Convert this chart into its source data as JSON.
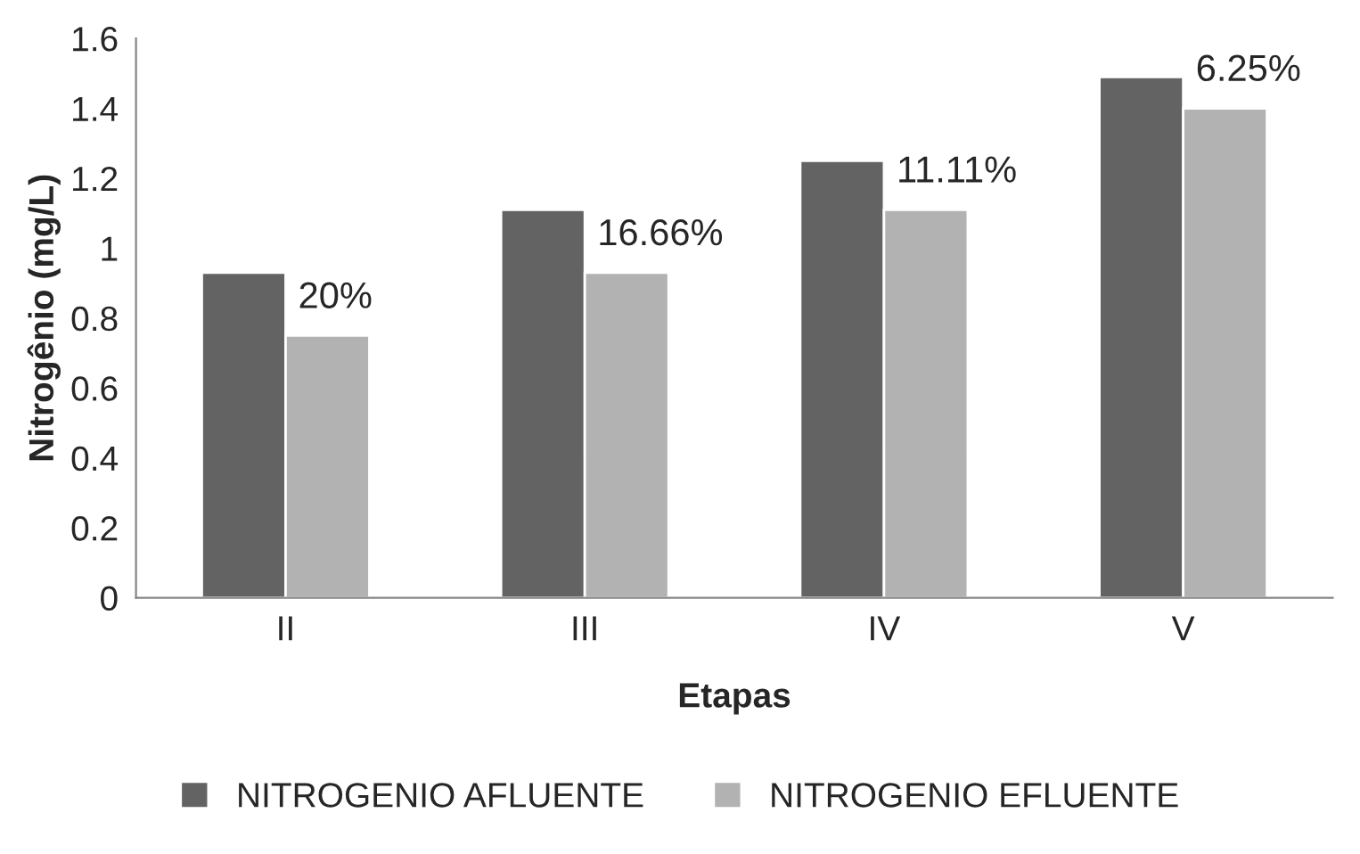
{
  "chart_data": {
    "type": "bar",
    "xlabel": "Etapas",
    "ylabel": "Nitrogênio (mg/L)",
    "categories": [
      "II",
      "III",
      "IV",
      "V"
    ],
    "series": [
      {
        "name": "NITROGENIO AFLUENTE",
        "color": "#636363",
        "values": [
          0.93,
          1.11,
          1.25,
          1.49
        ]
      },
      {
        "name": "NITROGENIO EFLUENTE",
        "color": "#b2b2b2",
        "values": [
          0.75,
          0.93,
          1.11,
          1.4
        ]
      }
    ],
    "annotations": [
      {
        "text": "20%",
        "x": "II",
        "y": 0.75
      },
      {
        "text": "16.66%",
        "x": "III",
        "y": 0.93
      },
      {
        "text": "11.11%",
        "x": "IV",
        "y": 1.11
      },
      {
        "text": "6.25%",
        "x": "V",
        "y": 1.4
      }
    ],
    "ylim": [
      0,
      1.6
    ],
    "yticks": [
      0,
      0.2,
      0.4,
      0.6,
      0.8,
      1,
      1.2,
      1.4,
      1.6
    ],
    "grid": false,
    "legend": "bottom"
  }
}
